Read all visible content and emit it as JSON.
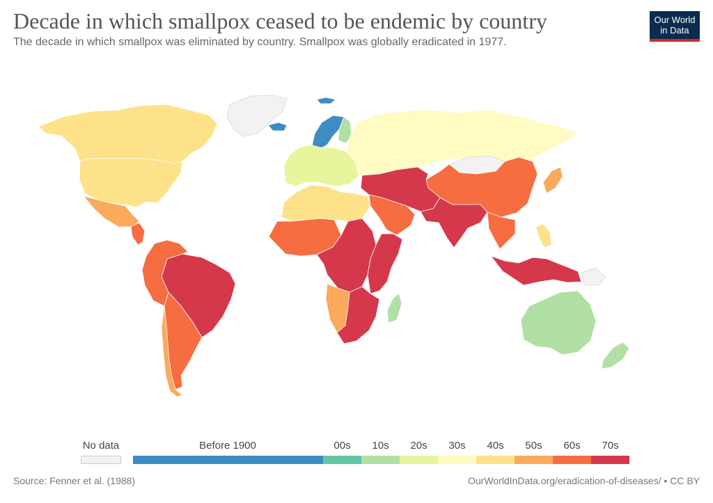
{
  "title": "Decade in which smallpox ceased to be endemic by country",
  "subtitle": "The decade in which smallpox was eliminated by country. Smallpox was globally eradicated in 1977.",
  "logo": {
    "line1": "Our World",
    "line2": "in Data"
  },
  "legend": {
    "no_data": {
      "label": "No data",
      "color": "#f2f2f2"
    },
    "bins": [
      {
        "label": "Before 1900",
        "color": "#3d8cc4"
      },
      {
        "label": "00s",
        "color": "#63c6a6"
      },
      {
        "label": "10s",
        "color": "#b0e0a4"
      },
      {
        "label": "20s",
        "color": "#e8f59c"
      },
      {
        "label": "30s",
        "color": "#fffbc2"
      },
      {
        "label": "40s",
        "color": "#fde28a"
      },
      {
        "label": "50s",
        "color": "#fba95b"
      },
      {
        "label": "60s",
        "color": "#f56d40"
      },
      {
        "label": "70s",
        "color": "#d5384b"
      }
    ]
  },
  "regions": [
    {
      "name": "Greenland",
      "bin": "No data"
    },
    {
      "name": "Canada",
      "bin": "40s"
    },
    {
      "name": "United States",
      "bin": "40s"
    },
    {
      "name": "Mexico",
      "bin": "50s"
    },
    {
      "name": "Central America",
      "bin": "60s"
    },
    {
      "name": "Brazil",
      "bin": "70s"
    },
    {
      "name": "Andean South America",
      "bin": "60s"
    },
    {
      "name": "Argentina",
      "bin": "60s"
    },
    {
      "name": "Chile",
      "bin": "50s"
    },
    {
      "name": "Iceland",
      "bin": "Before 1900"
    },
    {
      "name": "Svalbard",
      "bin": "Before 1900"
    },
    {
      "name": "Scandinavia",
      "bin": "Before 1900"
    },
    {
      "name": "Finland",
      "bin": "10s"
    },
    {
      "name": "Europe",
      "bin": "20s"
    },
    {
      "name": "Russia",
      "bin": "30s"
    },
    {
      "name": "Mongolia",
      "bin": "No data"
    },
    {
      "name": "China",
      "bin": "60s"
    },
    {
      "name": "Japan",
      "bin": "50s"
    },
    {
      "name": "Middle East",
      "bin": "70s"
    },
    {
      "name": "Arabian Peninsula",
      "bin": "60s"
    },
    {
      "name": "South Asia",
      "bin": "70s"
    },
    {
      "name": "Southeast Asia",
      "bin": "60s"
    },
    {
      "name": "Indonesia",
      "bin": "70s"
    },
    {
      "name": "Philippines",
      "bin": "40s"
    },
    {
      "name": "Australia",
      "bin": "10s"
    },
    {
      "name": "New Zealand",
      "bin": "10s"
    },
    {
      "name": "Papua New Guinea",
      "bin": "No data"
    },
    {
      "name": "North Africa",
      "bin": "40s"
    },
    {
      "name": "West Africa",
      "bin": "60s"
    },
    {
      "name": "Central Africa",
      "bin": "70s"
    },
    {
      "name": "East Africa",
      "bin": "70s"
    },
    {
      "name": "Angola & Namibia",
      "bin": "50s"
    },
    {
      "name": "Southern Africa",
      "bin": "70s"
    },
    {
      "name": "Madagascar",
      "bin": "10s"
    }
  ],
  "source": "Source: Fenner et al. (1988)",
  "footer_url": "OurWorldInData.org/eradication-of-diseases/",
  "license": " • CC BY"
}
